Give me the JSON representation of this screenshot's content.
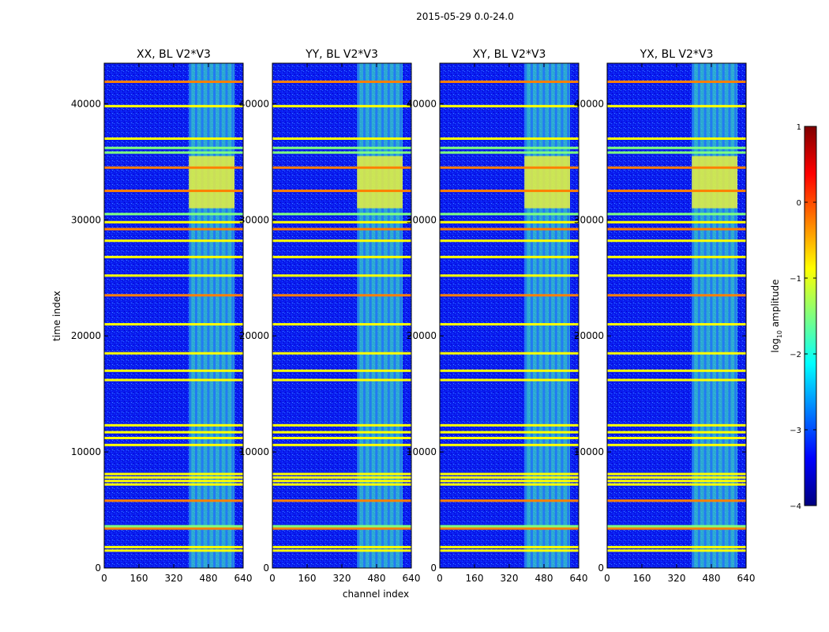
{
  "figure_title": "2015-05-29 0.0-24.0",
  "colors": {
    "background": "#ffffff",
    "colormap": "jet",
    "jet_stops": [
      "#00007f",
      "#0000ff",
      "#007fff",
      "#00ffff",
      "#7fff7f",
      "#ffff00",
      "#ff7f00",
      "#ff0000",
      "#7f0000"
    ]
  },
  "chart_data": {
    "type": "heatmap",
    "title": "2015-05-29 0.0-24.0",
    "xlabel": "channel index",
    "ylabel": "time index",
    "xlim": [
      0,
      640
    ],
    "ylim": [
      0,
      43500
    ],
    "x_ticks": [
      0,
      160,
      320,
      480,
      640
    ],
    "y_ticks": [
      0,
      10000,
      20000,
      30000,
      40000
    ],
    "panels": [
      {
        "title": "XX, BL V2*V3",
        "bright_band_channels": [
          390,
          600
        ]
      },
      {
        "title": "YY, BL V2*V3",
        "bright_band_channels": [
          390,
          600
        ]
      },
      {
        "title": "XY, BL V2*V3",
        "bright_band_channels": [
          390,
          600
        ]
      },
      {
        "title": "YX, BL V2*V3",
        "bright_band_channels": [
          390,
          600
        ]
      }
    ],
    "colorbar": {
      "label": "log10 amplitude",
      "label_main": "log",
      "label_sub": "10",
      "label_rest": " amplitude",
      "range": [
        -4,
        1
      ],
      "ticks": [
        "1",
        "0",
        "−1",
        "−2",
        "−3",
        "−4"
      ],
      "tick_values": [
        1,
        0,
        -1,
        -2,
        -3,
        -4
      ]
    },
    "flagged_time_rows": [
      {
        "t": 1500,
        "level": -0.8
      },
      {
        "t": 1800,
        "level": -0.8
      },
      {
        "t": 3400,
        "level": -0.3
      },
      {
        "t": 3600,
        "level": -1.3
      },
      {
        "t": 5800,
        "level": -0.2
      },
      {
        "t": 7200,
        "level": -1.0
      },
      {
        "t": 7500,
        "level": -0.9
      },
      {
        "t": 7800,
        "level": -0.9
      },
      {
        "t": 8100,
        "level": -0.9
      },
      {
        "t": 10600,
        "level": -0.8
      },
      {
        "t": 11200,
        "level": -0.6
      },
      {
        "t": 11700,
        "level": -0.7
      },
      {
        "t": 12300,
        "level": -1.0
      },
      {
        "t": 16200,
        "level": -0.9
      },
      {
        "t": 17000,
        "level": -0.8
      },
      {
        "t": 18500,
        "level": -0.7
      },
      {
        "t": 21000,
        "level": -0.8
      },
      {
        "t": 23500,
        "level": -0.4
      },
      {
        "t": 25200,
        "level": -0.8
      },
      {
        "t": 26800,
        "level": -0.6
      },
      {
        "t": 28200,
        "level": -0.7
      },
      {
        "t": 29200,
        "level": -0.3
      },
      {
        "t": 29800,
        "level": -0.8
      },
      {
        "t": 30500,
        "level": -1.6
      },
      {
        "t": 32500,
        "level": -0.2
      },
      {
        "t": 34500,
        "level": -0.4
      },
      {
        "t": 35800,
        "level": -1.6
      },
      {
        "t": 36200,
        "level": -1.6
      },
      {
        "t": 37000,
        "level": -0.6
      },
      {
        "t": 39800,
        "level": -0.8
      },
      {
        "t": 41900,
        "level": -0.4
      }
    ]
  }
}
